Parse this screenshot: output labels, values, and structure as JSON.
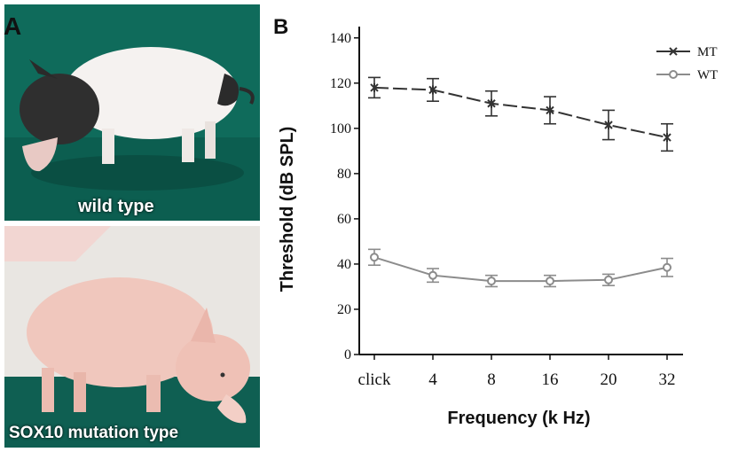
{
  "panel_a": {
    "letter": "A",
    "top_caption": "wild type",
    "bottom_caption": "SOX10 mutation type"
  },
  "panel_b": {
    "letter": "B"
  },
  "colors": {
    "mt": "#333333",
    "wt": "#8c8c8c"
  },
  "chart_data": {
    "type": "line",
    "categories": [
      "click",
      "4",
      "8",
      "16",
      "20",
      "32"
    ],
    "xlabel": "Frequency (k Hz)",
    "ylabel": "Threshold  (dB SPL)",
    "yticks": [
      "0",
      "20",
      "40",
      "60",
      "80",
      "100",
      "120",
      "140"
    ],
    "ylim": [
      0,
      145
    ],
    "grid": false,
    "legend": "top-right",
    "series": [
      {
        "name": "MT",
        "marker": "star",
        "line": "dashed",
        "values": [
          118,
          117,
          111,
          108,
          101.5,
          96
        ],
        "errors": [
          4.5,
          5,
          5.5,
          6,
          6.5,
          6
        ]
      },
      {
        "name": "WT",
        "marker": "circle",
        "line": "solid",
        "values": [
          43,
          35,
          32.5,
          32.5,
          33,
          38.5
        ],
        "errors": [
          3.5,
          3,
          2.5,
          2.5,
          2.5,
          4
        ]
      }
    ]
  }
}
